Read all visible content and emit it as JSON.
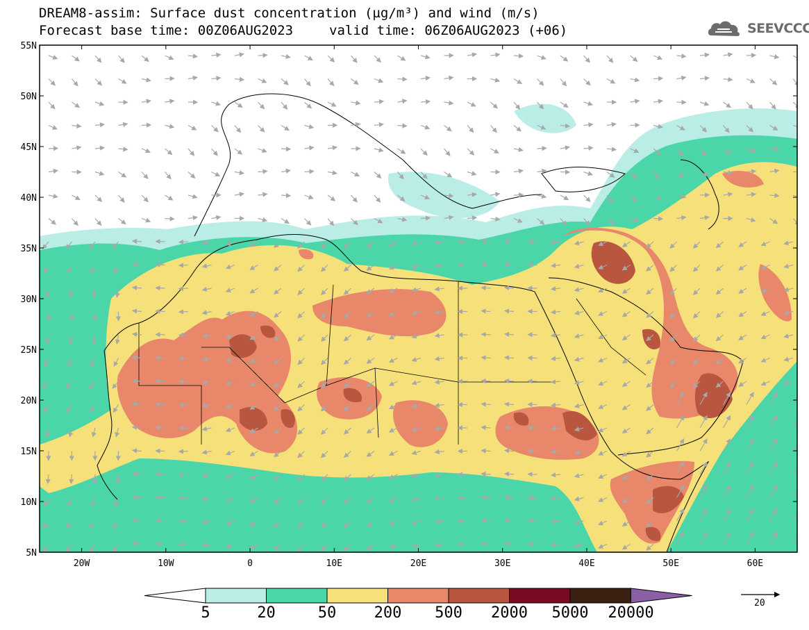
{
  "title": {
    "line1": "DREAM8-assim: Surface dust concentration (µg/m³) and wind (m/s)",
    "base_time": "Forecast base time: 00Z06AUG2023",
    "valid_time": "valid time: 06Z06AUG2023 (+06)"
  },
  "logo": {
    "name": "cloud-icon",
    "text": "SEEVCCC",
    "color": "#6c6c6c"
  },
  "axes": {
    "lat_labels": [
      "55N",
      "50N",
      "45N",
      "40N",
      "35N",
      "30N",
      "25N",
      "20N",
      "15N",
      "10N",
      "5N"
    ],
    "lat_values": [
      55,
      50,
      45,
      40,
      35,
      30,
      25,
      20,
      15,
      10,
      5
    ],
    "lon_labels": [
      "20W",
      "10W",
      "0",
      "10E",
      "20E",
      "30E",
      "40E",
      "50E",
      "60E"
    ],
    "lon_values": [
      -20,
      -10,
      0,
      10,
      20,
      30,
      40,
      50,
      60
    ],
    "lon_range": [
      -25,
      65
    ],
    "lat_range": [
      5,
      55
    ]
  },
  "legend": {
    "levels": [
      "5",
      "20",
      "50",
      "200",
      "500",
      "2000",
      "5000",
      "20000"
    ],
    "colors": [
      "#ffffff",
      "#b9ede6",
      "#4ad6a8",
      "#f5e07a",
      "#e8876a",
      "#b85640",
      "#7a0a22",
      "#3a2112",
      "#8b5fa6"
    ]
  },
  "wind_reference": {
    "label": "20"
  },
  "chart_data": {
    "type": "heatmap",
    "variable": "Surface dust concentration (µg/m³) and wind (m/s)",
    "xlabel": "",
    "ylabel": "",
    "xlim": [
      -25,
      65
    ],
    "ylim": [
      5,
      55
    ],
    "levels": [
      5,
      20,
      50,
      200,
      500,
      2000,
      5000,
      20000
    ]
  }
}
